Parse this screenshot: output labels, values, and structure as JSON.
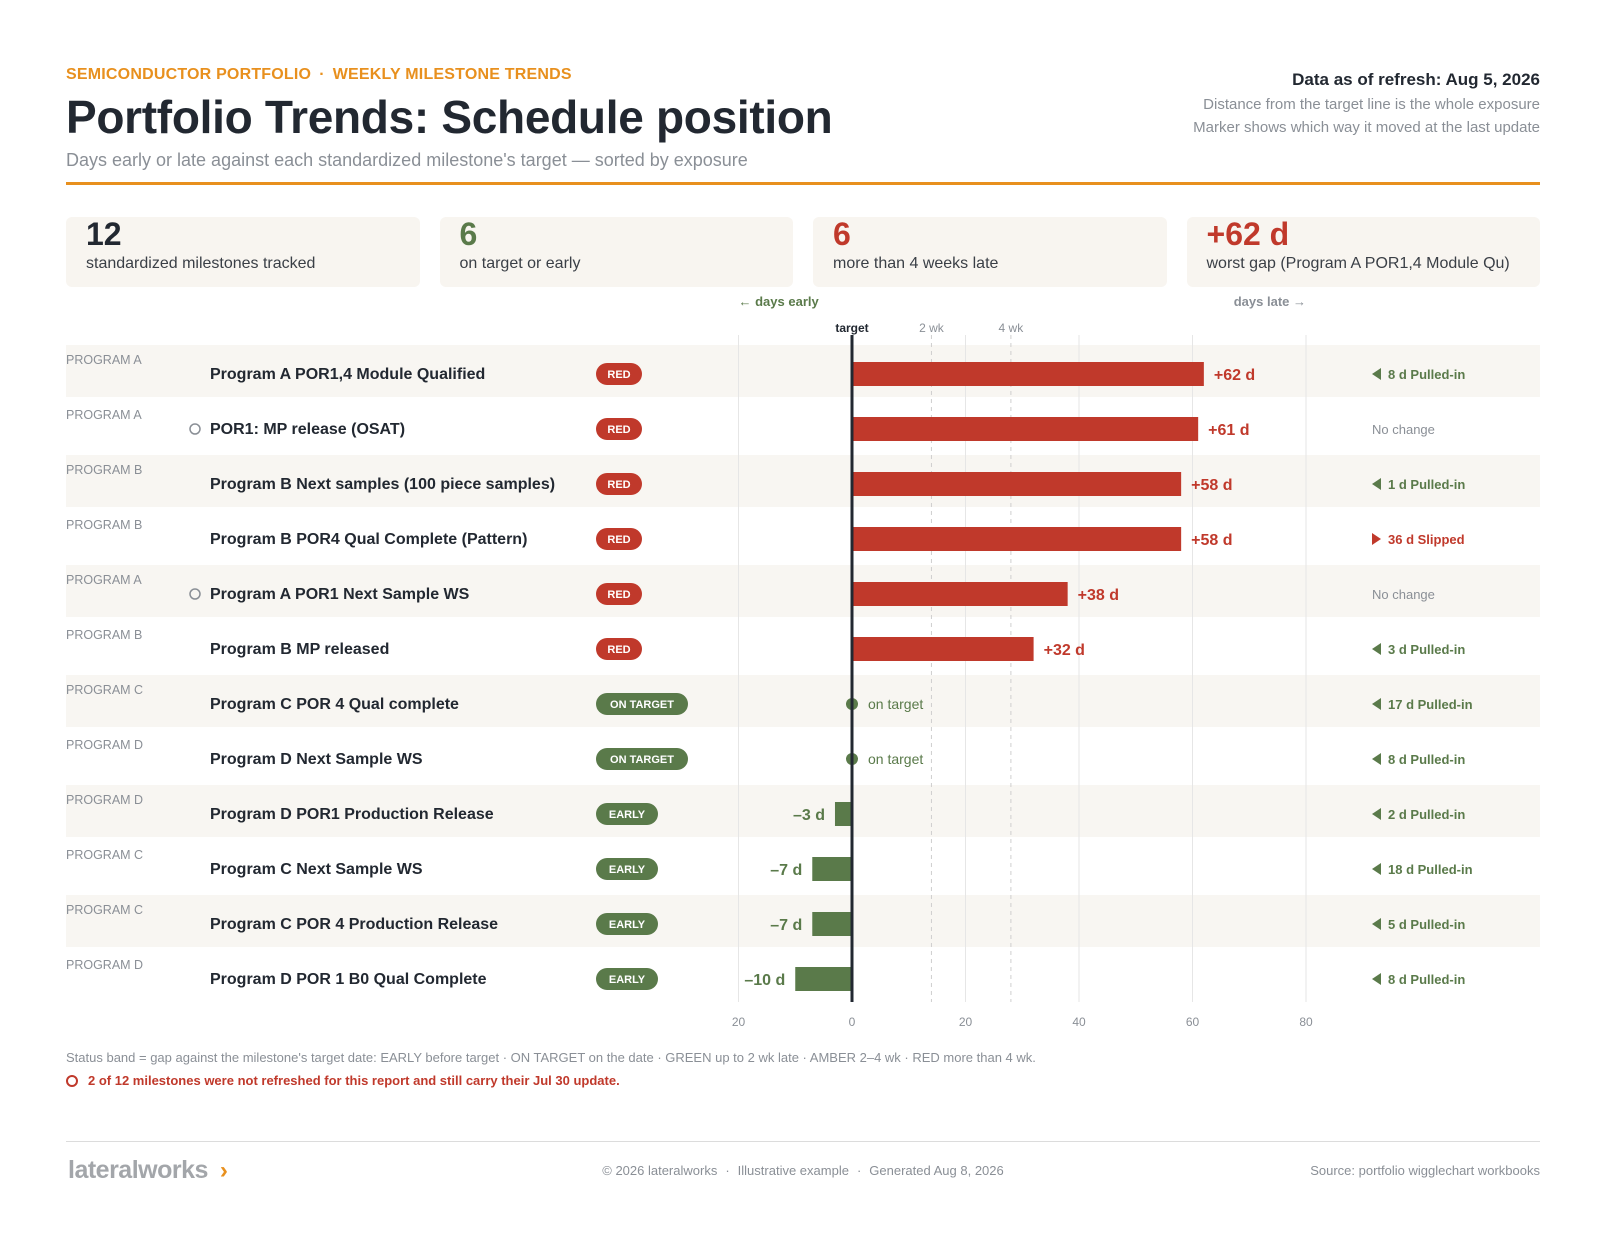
{
  "header": {
    "eyebrow_left": "SEMICONDUCTOR PORTFOLIO",
    "eyebrow_sep": "·",
    "eyebrow_right": "WEEKLY MILESTONE TRENDS",
    "title": "Portfolio Trends: Schedule position",
    "subtitle": "Days early or late against each standardized milestone's target — sorted by exposure",
    "refresh": "Data as of refresh: Aug 5, 2026",
    "note1": "Distance from the target line is the whole exposure",
    "note2": "Marker shows which way it moved at the last update"
  },
  "kpis": [
    {
      "value": "12",
      "label": "standardized milestones tracked",
      "tone": "dark"
    },
    {
      "value": "6",
      "label": "on target or early",
      "tone": "green"
    },
    {
      "value": "6",
      "label": "more than 4 weeks late",
      "tone": "red"
    },
    {
      "value": "+62 d",
      "label": "worst gap (Program A POR1,4 Module Qu)",
      "tone": "red"
    }
  ],
  "colors": {
    "red": "#c0392b",
    "green": "#5a7a4a",
    "orange": "#e8901e",
    "grey": "#8a8f96",
    "band": "#f8f6f2"
  },
  "chart_data": {
    "type": "bar",
    "orientation": "horizontal",
    "direction_early": "← days early",
    "direction_late": "days late →",
    "target_label": "target",
    "ref_labels": [
      "2 wk",
      "4 wk"
    ],
    "ref_values": [
      14,
      28
    ],
    "xlim": [
      -20,
      80
    ],
    "xticks": [
      -20,
      0,
      20,
      40,
      60,
      80
    ],
    "xtick_labels": [
      "20",
      "0",
      "20",
      "40",
      "60",
      "80"
    ],
    "on_target_text": "on target",
    "rows": [
      {
        "program": "PROGRAM A",
        "milestone": "Program A POR1,4 Module Qualified",
        "status": "RED",
        "value": 62,
        "value_label": "+62 d",
        "stale": false,
        "move_dir": "left",
        "move_text": "8 d Pulled-in",
        "move_tone": "green"
      },
      {
        "program": "PROGRAM A",
        "milestone": "POR1: MP release (OSAT)",
        "status": "RED",
        "value": 61,
        "value_label": "+61 d",
        "stale": true,
        "move_dir": "none",
        "move_text": "No change",
        "move_tone": "grey"
      },
      {
        "program": "PROGRAM B",
        "milestone": "Program B Next samples (100 piece samples)",
        "status": "RED",
        "value": 58,
        "value_label": "+58 d",
        "stale": false,
        "move_dir": "left",
        "move_text": "1 d Pulled-in",
        "move_tone": "green"
      },
      {
        "program": "PROGRAM B",
        "milestone": "Program B POR4 Qual Complete (Pattern)",
        "status": "RED",
        "value": 58,
        "value_label": "+58 d",
        "stale": false,
        "move_dir": "right",
        "move_text": "36 d Slipped",
        "move_tone": "red"
      },
      {
        "program": "PROGRAM A",
        "milestone": "Program A POR1 Next Sample WS",
        "status": "RED",
        "value": 38,
        "value_label": "+38 d",
        "stale": true,
        "move_dir": "none",
        "move_text": "No change",
        "move_tone": "grey"
      },
      {
        "program": "PROGRAM B",
        "milestone": "Program B MP released",
        "status": "RED",
        "value": 32,
        "value_label": "+32 d",
        "stale": false,
        "move_dir": "left",
        "move_text": "3 d Pulled-in",
        "move_tone": "green"
      },
      {
        "program": "PROGRAM C",
        "milestone": "Program C POR 4 Qual complete",
        "status": "ON TARGET",
        "value": 0,
        "value_label": "",
        "stale": false,
        "move_dir": "left",
        "move_text": "17 d Pulled-in",
        "move_tone": "green"
      },
      {
        "program": "PROGRAM D",
        "milestone": "Program D Next Sample WS",
        "status": "ON TARGET",
        "value": 0,
        "value_label": "",
        "stale": false,
        "move_dir": "left",
        "move_text": "8 d Pulled-in",
        "move_tone": "green"
      },
      {
        "program": "PROGRAM D",
        "milestone": "Program D POR1 Production Release",
        "status": "EARLY",
        "value": -3,
        "value_label": "–3 d",
        "stale": false,
        "move_dir": "left",
        "move_text": "2 d Pulled-in",
        "move_tone": "green"
      },
      {
        "program": "PROGRAM C",
        "milestone": "Program C Next Sample WS",
        "status": "EARLY",
        "value": -7,
        "value_label": "–7 d",
        "stale": false,
        "move_dir": "left",
        "move_text": "18 d Pulled-in",
        "move_tone": "green"
      },
      {
        "program": "PROGRAM C",
        "milestone": "Program C POR 4 Production Release",
        "status": "EARLY",
        "value": -7,
        "value_label": "–7 d",
        "stale": false,
        "move_dir": "left",
        "move_text": "5 d Pulled-in",
        "move_tone": "green"
      },
      {
        "program": "PROGRAM D",
        "milestone": "Program D POR 1 B0 Qual Complete",
        "status": "EARLY",
        "value": -10,
        "value_label": "–10 d",
        "stale": false,
        "move_dir": "left",
        "move_text": "8 d Pulled-in",
        "move_tone": "green"
      }
    ]
  },
  "notes": {
    "legend": "Status band = gap against the milestone's target date:  EARLY before target  ·  ON TARGET on the date  ·  GREEN up to 2 wk late  ·  AMBER 2–4 wk  ·  RED more than 4 wk.",
    "stale": "2 of 12 milestones were not refreshed for this report and still carry their Jul 30 update."
  },
  "footer": {
    "brand": "lateralworks",
    "brand_mark": "›",
    "copyright": "© 2026 lateralworks",
    "sep": "·",
    "example": "Illustrative example",
    "generated": "Generated Aug 8, 2026",
    "source": "Source: portfolio wigglechart workbooks"
  }
}
